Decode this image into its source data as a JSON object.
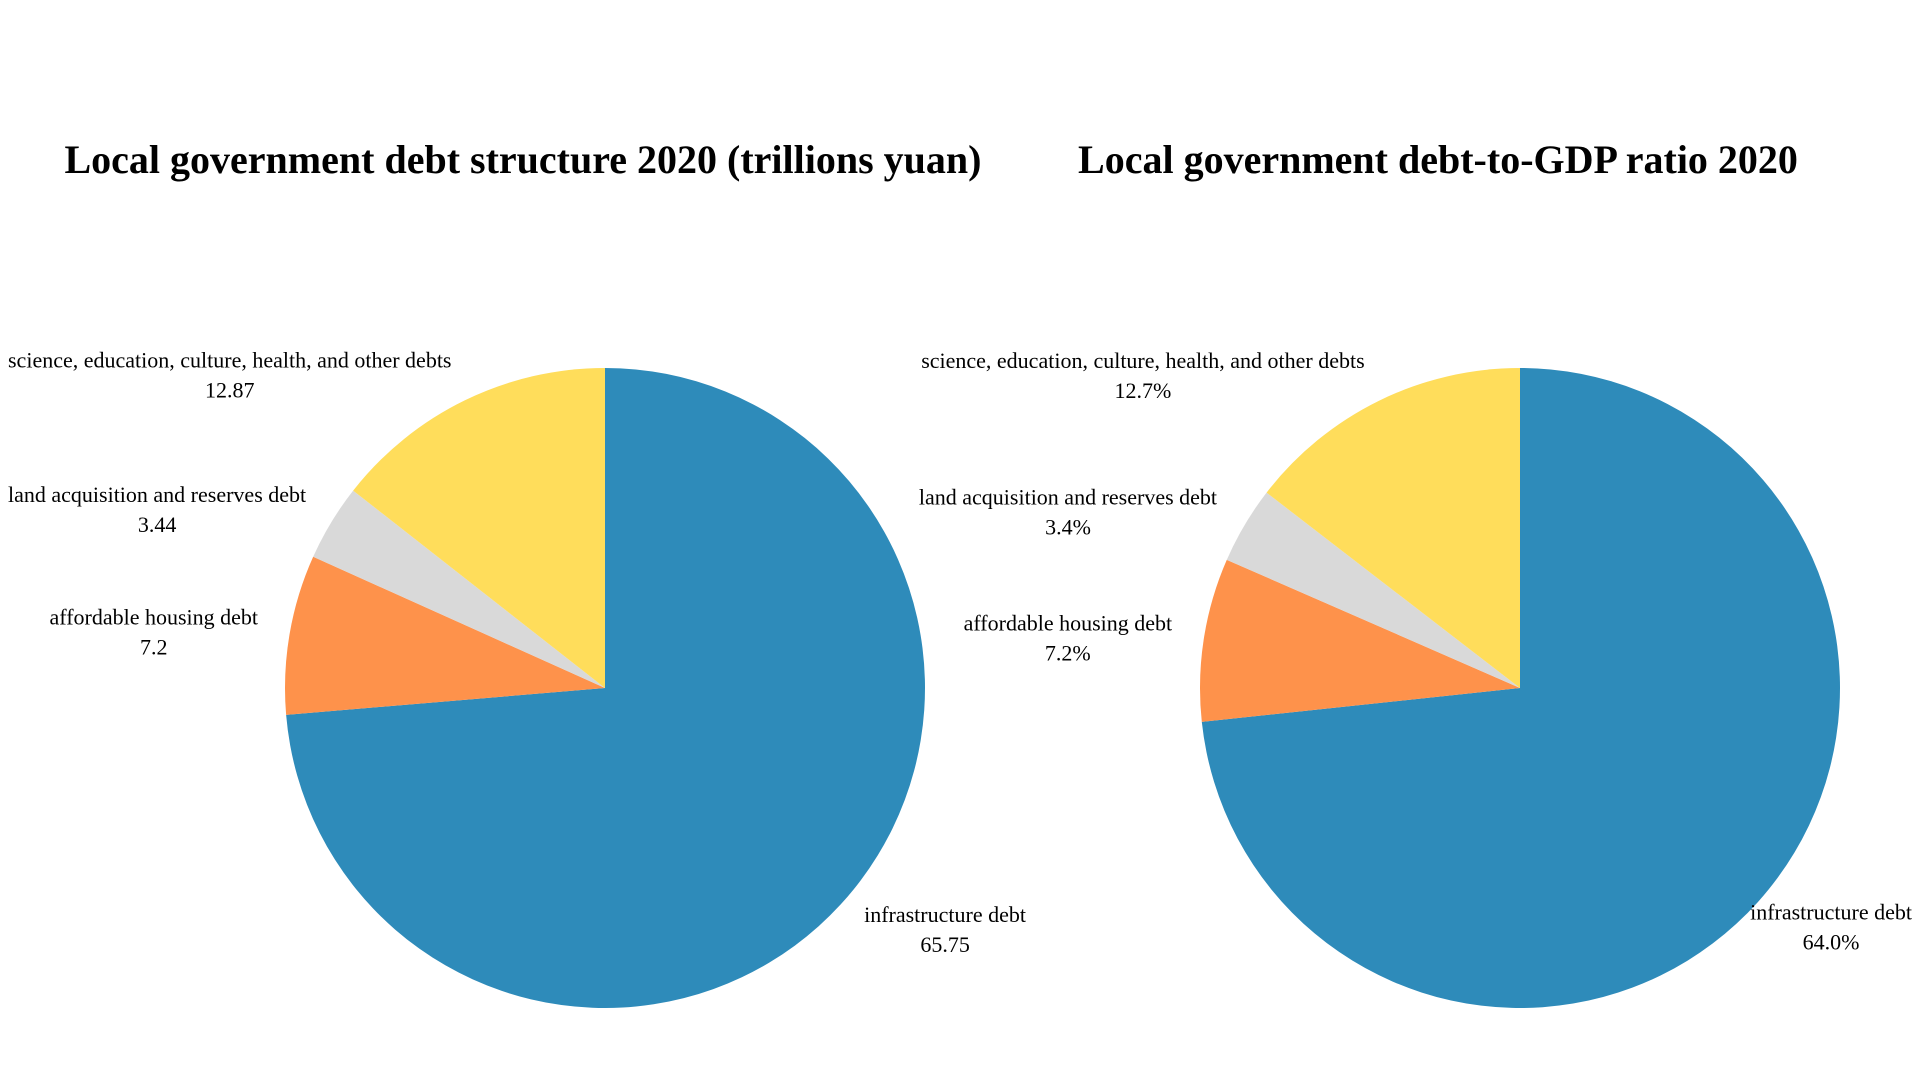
{
  "chart_data": [
    {
      "type": "pie",
      "title": "Local government debt structure 2020 (trillions yuan)",
      "categories": [
        "infrastructure debt",
        "affordable housing debt",
        "land acquisition and reserves debt",
        "science, education, culture, health, and other debts"
      ],
      "values": [
        65.75,
        7.2,
        3.44,
        12.87
      ],
      "value_labels": [
        "65.75",
        "7.2",
        "3.44",
        "12.87"
      ],
      "colors": [
        "#2e8bba",
        "#fe924b",
        "#d9d9d9",
        "#ffdd5b"
      ],
      "start_angle": "90 degrees (top)",
      "direction": "clockwise"
    },
    {
      "type": "pie",
      "title": "Local government debt-to-GDP ratio 2020",
      "categories": [
        "infrastructure debt",
        "affordable housing debt",
        "land acquisition and reserves debt",
        "science, education, culture, health, and other debts"
      ],
      "values": [
        64.0,
        7.2,
        3.4,
        12.7
      ],
      "value_labels": [
        "64.0%",
        "7.2%",
        "3.4%",
        "12.7%"
      ],
      "colors": [
        "#2e8bba",
        "#fe924b",
        "#d9d9d9",
        "#ffdd5b"
      ],
      "start_angle": "90 degrees (top)",
      "direction": "clockwise"
    }
  ]
}
